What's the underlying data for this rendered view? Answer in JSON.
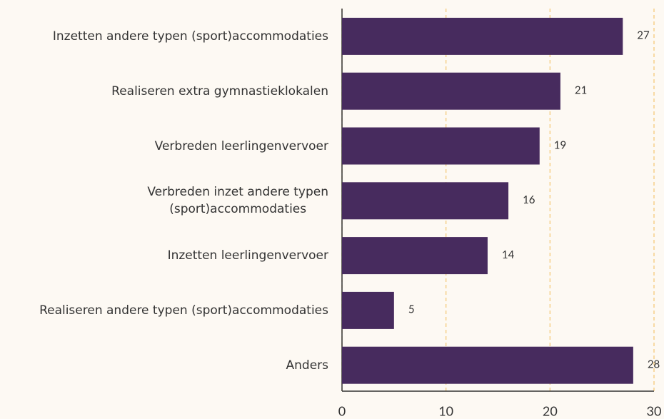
{
  "chart_data": {
    "type": "hbar",
    "categories": [
      "Inzetten andere typen (sport)accommodaties",
      "Realiseren extra gymnastieklokalen",
      "Verbreden leerlingenvervoer",
      "Verbreden inzet andere typen\n(sport)accommodaties",
      "Inzetten leerlingenvervoer",
      "Realiseren andere typen (sport)accommodaties",
      "Anders"
    ],
    "values": [
      27,
      21,
      19,
      16,
      14,
      5,
      28
    ],
    "color": "#472b5e",
    "xlim": [
      0,
      30
    ],
    "xticks": [
      0,
      10,
      20,
      30
    ],
    "grid": true,
    "grid_color": "#f5c97a"
  }
}
